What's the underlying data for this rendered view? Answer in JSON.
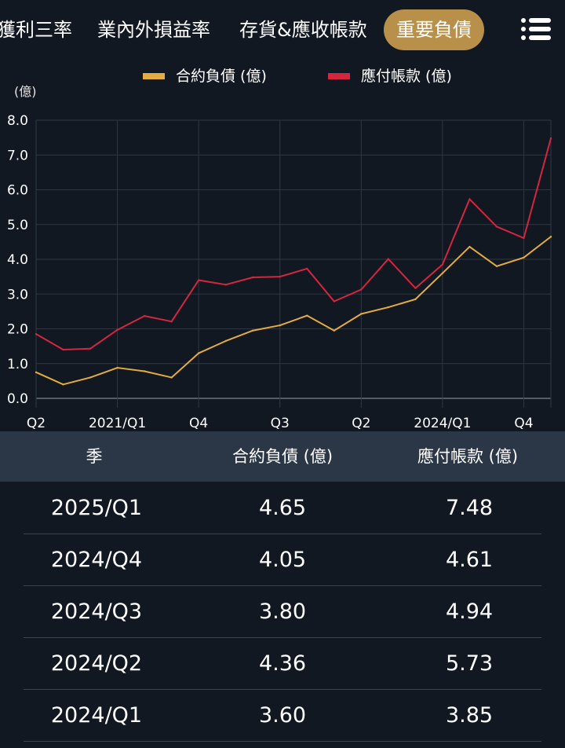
{
  "tabs": [
    {
      "label": "獲利三率",
      "active": false
    },
    {
      "label": "業內外損益率",
      "active": false
    },
    {
      "label": "存貨&應收帳款",
      "active": false
    },
    {
      "label": "重要負債",
      "active": true
    }
  ],
  "menu_icon": "list-menu-icon",
  "colors": {
    "background": "#121821",
    "active_tab": "#b8904a",
    "series_contract": "#e2ac3f",
    "series_payable": "#d4263e",
    "table_header": "#2b3646"
  },
  "legend": {
    "contract_label": "合約負債 (億)",
    "payable_label": "應付帳款 (億)"
  },
  "chart_unit": "(億)",
  "chart_data": {
    "type": "line",
    "x_tick_labels": [
      "Q2",
      "2021/Q1",
      "Q4",
      "Q3",
      "Q2",
      "2024/Q1",
      "Q4"
    ],
    "y_ticks": [
      "0.0",
      "1.0",
      "2.0",
      "3.0",
      "4.0",
      "5.0",
      "6.0",
      "7.0",
      "8.0"
    ],
    "ylim": [
      0,
      8
    ],
    "x": [
      "2020/Q2",
      "2020/Q3",
      "2020/Q4",
      "2021/Q1",
      "2021/Q2",
      "2021/Q3",
      "2021/Q4",
      "2022/Q1",
      "2022/Q2",
      "2022/Q3",
      "2022/Q4",
      "2023/Q1",
      "2023/Q2",
      "2023/Q3",
      "2023/Q4",
      "2024/Q1",
      "2024/Q2",
      "2024/Q3",
      "2024/Q4",
      "2025/Q1"
    ],
    "series": [
      {
        "name": "合約負債 (億)",
        "color": "#e2ac3f",
        "values": [
          0.75,
          0.4,
          0.6,
          0.88,
          0.78,
          0.6,
          1.3,
          1.65,
          1.95,
          2.1,
          2.38,
          1.95,
          2.43,
          2.62,
          2.85,
          3.6,
          4.36,
          3.8,
          4.05,
          4.65
        ]
      },
      {
        "name": "應付帳款 (億)",
        "color": "#d4263e",
        "values": [
          1.85,
          1.4,
          1.43,
          1.97,
          2.37,
          2.21,
          3.4,
          3.27,
          3.48,
          3.5,
          3.73,
          2.79,
          3.13,
          4.01,
          3.17,
          3.85,
          5.73,
          4.94,
          4.61,
          7.48
        ]
      }
    ],
    "grid": true,
    "legend_position": "top"
  },
  "table": {
    "headers": [
      "季",
      "合約負債 (億)",
      "應付帳款 (億)"
    ],
    "rows": [
      [
        "2025/Q1",
        "4.65",
        "7.48"
      ],
      [
        "2024/Q4",
        "4.05",
        "4.61"
      ],
      [
        "2024/Q3",
        "3.80",
        "4.94"
      ],
      [
        "2024/Q2",
        "4.36",
        "5.73"
      ],
      [
        "2024/Q1",
        "3.60",
        "3.85"
      ]
    ]
  }
}
